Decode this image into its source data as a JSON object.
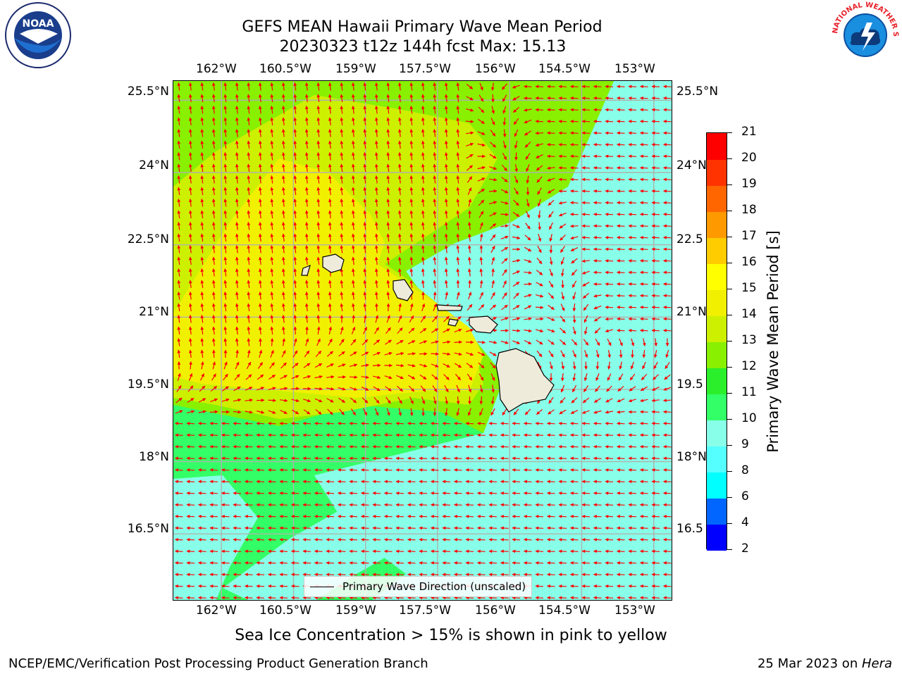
{
  "title": {
    "line1": "GEFS MEAN Hawaii Primary Wave Mean Period",
    "line2": "20230323 t12z 144h fcst   Max: 15.13"
  },
  "axes": {
    "lon_labels": [
      "162°W",
      "160.5°W",
      "159°W",
      "157.5°W",
      "156°W",
      "154.5°W",
      "153°W"
    ],
    "lat_labels": [
      "25.5°N",
      "24°N",
      "22.5°N",
      "21°N",
      "19.5°N",
      "18°N",
      "16.5°N"
    ],
    "lat_labels_right": [
      "25.5°N",
      "24°N",
      "22.5",
      "21°N",
      "19.5",
      "18°N",
      "16.5"
    ],
    "lon_range": [
      -163.0,
      -152.6
    ],
    "lat_range": [
      15.1,
      25.9
    ],
    "grid": true
  },
  "legend": {
    "label": "Primary Wave Direction (unscaled)",
    "placement": "bottom-center"
  },
  "colorbar": {
    "label": "Primary Wave Mean Period [s]",
    "ticks": [
      "2",
      "4",
      "6",
      "8",
      "9",
      "10",
      "11",
      "12",
      "13",
      "14",
      "15",
      "16",
      "17",
      "18",
      "19",
      "20",
      "21"
    ],
    "colors": [
      "#0000ff",
      "#0066ff",
      "#00ffff",
      "#55ffff",
      "#88ffe8",
      "#33ff66",
      "#2bef2b",
      "#88f000",
      "#ccf000",
      "#f0f000",
      "#ffff00",
      "#ffcc00",
      "#ff9900",
      "#ff6600",
      "#ff3300",
      "#ff0000"
    ]
  },
  "field_colors": {
    "band_10_11": "#88ffe8",
    "band_11_12": "#33ff66",
    "band_12_13": "#88f000",
    "band_13_14": "#ccf000",
    "band_14_15": "#f0f000",
    "land": "#efebdb",
    "arrow": "#ff0000"
  },
  "footnote": "Sea Ice Concentration > 15% is shown in pink to yellow",
  "credit": "NCEP/EMC/Verification Post Processing Product Generation Branch",
  "date": {
    "prefix": "25 Mar 2023 on ",
    "machine": "Hera"
  },
  "logos": {
    "noaa": "NOAA",
    "nws": "NATIONAL WEATHER SERVICE"
  }
}
